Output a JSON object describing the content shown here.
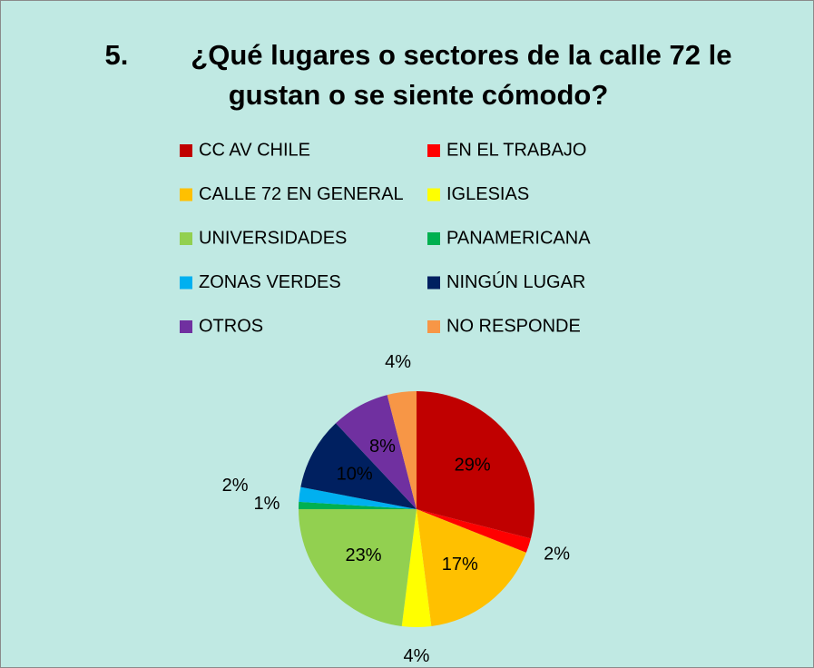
{
  "chart_data": {
    "type": "pie",
    "title": "5.        ¿Qué lugares o sectores de la calle 72 le gustan o se siente cómodo?",
    "categories": [
      "CC AV CHILE",
      "EN EL TRABAJO",
      "CALLE 72 EN GENERAL",
      "IGLESIAS",
      "UNIVERSIDADES",
      "PANAMERICANA",
      "ZONAS VERDES",
      "NINGÚN LUGAR",
      "OTROS",
      "NO RESPONDE"
    ],
    "values": [
      29,
      2,
      17,
      4,
      23,
      1,
      2,
      10,
      8,
      4
    ],
    "value_labels": [
      "29%",
      "2%",
      "17%",
      "4%",
      "23%",
      "1%",
      "2%",
      "10%",
      "8%",
      "4%"
    ],
    "colors": [
      "#c00000",
      "#ff0000",
      "#ffc000",
      "#ffff00",
      "#92d050",
      "#00b050",
      "#00b0f0",
      "#002060",
      "#7030a0",
      "#f79646"
    ],
    "legend": "top"
  }
}
